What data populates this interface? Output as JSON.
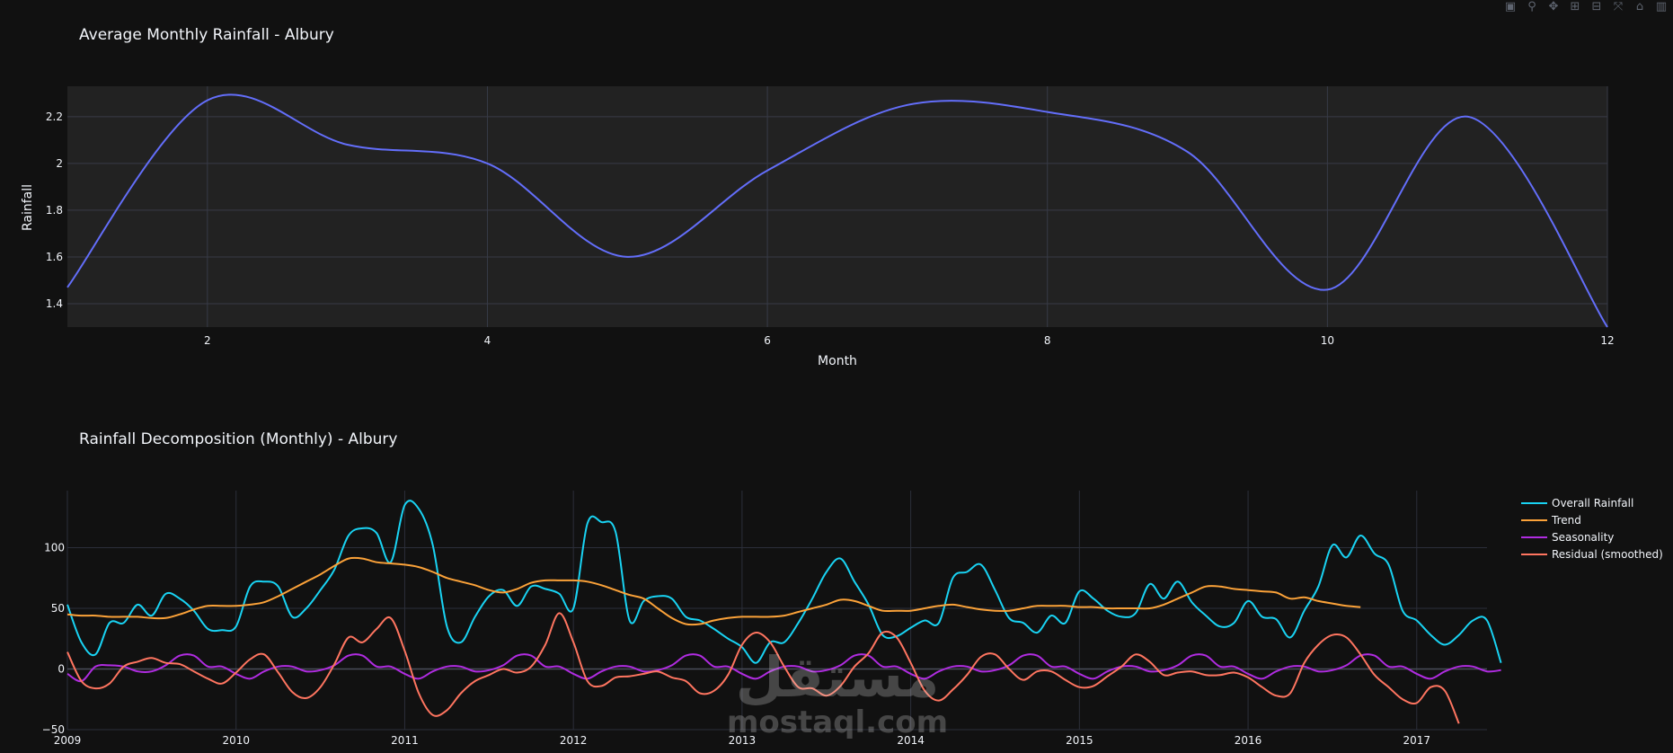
{
  "modebar": {
    "buttons": [
      {
        "icon": "camera-icon",
        "glyph": "▣"
      },
      {
        "icon": "zoom-icon",
        "glyph": "⚲"
      },
      {
        "icon": "pan-icon",
        "glyph": "✥"
      },
      {
        "icon": "zoom-in-icon",
        "glyph": "⊞"
      },
      {
        "icon": "zoom-out-icon",
        "glyph": "⊟"
      },
      {
        "icon": "autoscale-icon",
        "glyph": "⤧"
      },
      {
        "icon": "reset-axes-icon",
        "glyph": "⌂"
      },
      {
        "icon": "plotly-logo-icon",
        "glyph": "▥"
      }
    ]
  },
  "watermark": {
    "arabic": "مستقل",
    "latin": "mostaql.com"
  },
  "chart_data": [
    {
      "type": "line",
      "title": "Average Monthly Rainfall - Albury",
      "xlabel": "Month",
      "ylabel": "Rainfall",
      "x": [
        1,
        2,
        3,
        4,
        5,
        6,
        7,
        8,
        9,
        10,
        11,
        12
      ],
      "series": [
        {
          "color": "#636efa",
          "values": [
            1.47,
            2.27,
            2.08,
            2.0,
            1.6,
            1.97,
            2.25,
            2.22,
            2.05,
            1.46,
            2.2,
            1.3
          ]
        }
      ],
      "xticks": [
        2,
        4,
        6,
        8,
        10,
        12
      ],
      "yticks": [
        1.4,
        1.6,
        1.8,
        2,
        2.2
      ],
      "ytick_labels": [
        "1.4",
        "1.6",
        "1.8",
        "2",
        "2.2"
      ],
      "xlim": [
        1,
        12
      ],
      "ylim": [
        1.3,
        2.33
      ],
      "grid": true,
      "plot_bgcolor": "#222222"
    },
    {
      "type": "line",
      "title": "Rainfall Decomposition (Monthly) - Albury",
      "xlabel": "",
      "ylabel": "",
      "x_start": "2009-01",
      "x_step": "month",
      "xticks": [
        "2009",
        "2010",
        "2011",
        "2012",
        "2013",
        "2014",
        "2015",
        "2016",
        "2017"
      ],
      "yticks": [
        -50,
        0,
        50,
        100
      ],
      "ytick_labels": [
        "−50",
        "0",
        "50",
        "100"
      ],
      "xlim": [
        "2009-01",
        "2017-06"
      ],
      "ylim": [
        -50,
        147
      ],
      "grid": true,
      "legend_position": "right",
      "plot_bgcolor": "#111111",
      "series": [
        {
          "name": "Overall Rainfall",
          "color": "#19d3f3",
          "values": [
            53,
            22,
            12,
            38,
            38,
            53,
            44,
            62,
            58,
            48,
            33,
            32,
            35,
            68,
            72,
            68,
            43,
            50,
            65,
            82,
            110,
            116,
            112,
            88,
            135,
            132,
            102,
            35,
            22,
            43,
            60,
            65,
            52,
            68,
            66,
            62,
            50,
            120,
            121,
            113,
            40,
            56,
            60,
            58,
            43,
            40,
            33,
            25,
            18,
            5,
            22,
            22,
            38,
            58,
            80,
            91,
            72,
            53,
            28,
            27,
            34,
            40,
            38,
            75,
            80,
            86,
            65,
            42,
            38,
            30,
            44,
            38,
            64,
            58,
            48,
            43,
            46,
            70,
            58,
            72,
            55,
            44,
            35,
            38,
            56,
            43,
            41,
            26,
            48,
            68,
            102,
            92,
            110,
            95,
            86,
            48,
            40,
            28,
            20,
            28,
            40,
            40,
            5
          ]
        },
        {
          "name": "Trend",
          "color": "#fba239",
          "values": [
            45,
            44,
            44,
            43,
            43,
            43,
            42,
            42,
            45,
            49,
            52,
            52,
            52,
            53,
            55,
            60,
            66,
            72,
            78,
            85,
            91,
            91,
            88,
            87,
            86,
            84,
            80,
            75,
            72,
            69,
            65,
            63,
            66,
            71,
            73,
            73,
            73,
            72,
            69,
            65,
            61,
            58,
            50,
            42,
            37,
            37,
            40,
            42,
            43,
            43,
            43,
            44,
            47,
            50,
            53,
            57,
            56,
            52,
            48,
            48,
            48,
            50,
            52,
            53,
            51,
            49,
            48,
            48,
            50,
            52,
            52,
            52,
            51,
            51,
            50,
            50,
            50,
            50,
            53,
            58,
            63,
            68,
            68,
            66,
            65,
            64,
            63,
            58,
            59,
            56,
            54,
            52,
            51
          ]
        },
        {
          "name": "Seasonality",
          "color": "#b02ce1",
          "values": [
            -4,
            -10,
            2,
            3,
            2,
            -2,
            -2,
            3,
            11,
            11,
            2,
            2,
            -4,
            -8,
            -2,
            2,
            2,
            -2,
            -1,
            3,
            11,
            11,
            2,
            2,
            -4,
            -8,
            -2,
            2,
            2,
            -2,
            -1,
            3,
            11,
            11,
            2,
            2,
            -4,
            -8,
            -2,
            2,
            2,
            -2,
            -1,
            3,
            11,
            11,
            2,
            2,
            -4,
            -8,
            -2,
            2,
            2,
            -2,
            -1,
            3,
            11,
            11,
            2,
            2,
            -4,
            -8,
            -2,
            2,
            2,
            -2,
            -1,
            3,
            11,
            11,
            2,
            2,
            -4,
            -8,
            -2,
            2,
            2,
            -2,
            -1,
            3,
            11,
            11,
            2,
            2,
            -4,
            -8,
            -2,
            2,
            2,
            -2,
            -1,
            3,
            11,
            11,
            2,
            2,
            -4,
            -8,
            -2,
            2,
            2,
            -2,
            -1
          ]
        },
        {
          "name": "Residual (smoothed)",
          "color": "#ff7560",
          "values": [
            14,
            -10,
            -16,
            -12,
            2,
            6,
            9,
            5,
            4,
            -2,
            -8,
            -12,
            -3,
            8,
            12,
            -3,
            -19,
            -24,
            -15,
            4,
            26,
            22,
            33,
            42,
            15,
            -20,
            -38,
            -34,
            -20,
            -10,
            -5,
            0,
            -3,
            2,
            20,
            46,
            22,
            -10,
            -14,
            -7,
            -6,
            -4,
            -2,
            -7,
            -10,
            -20,
            -18,
            -5,
            20,
            30,
            22,
            2,
            -15,
            -16,
            -22,
            -14,
            2,
            13,
            30,
            26,
            5,
            -18,
            -26,
            -17,
            -5,
            10,
            12,
            0,
            -9,
            -2,
            -2,
            -9,
            -15,
            -14,
            -6,
            2,
            12,
            6,
            -5,
            -3,
            -2,
            -5,
            -5,
            -3,
            -7,
            -15,
            -22,
            -20,
            5,
            20,
            28,
            26,
            12,
            -5,
            -15,
            -25,
            -28,
            -15,
            -18,
            -45
          ]
        }
      ]
    }
  ]
}
